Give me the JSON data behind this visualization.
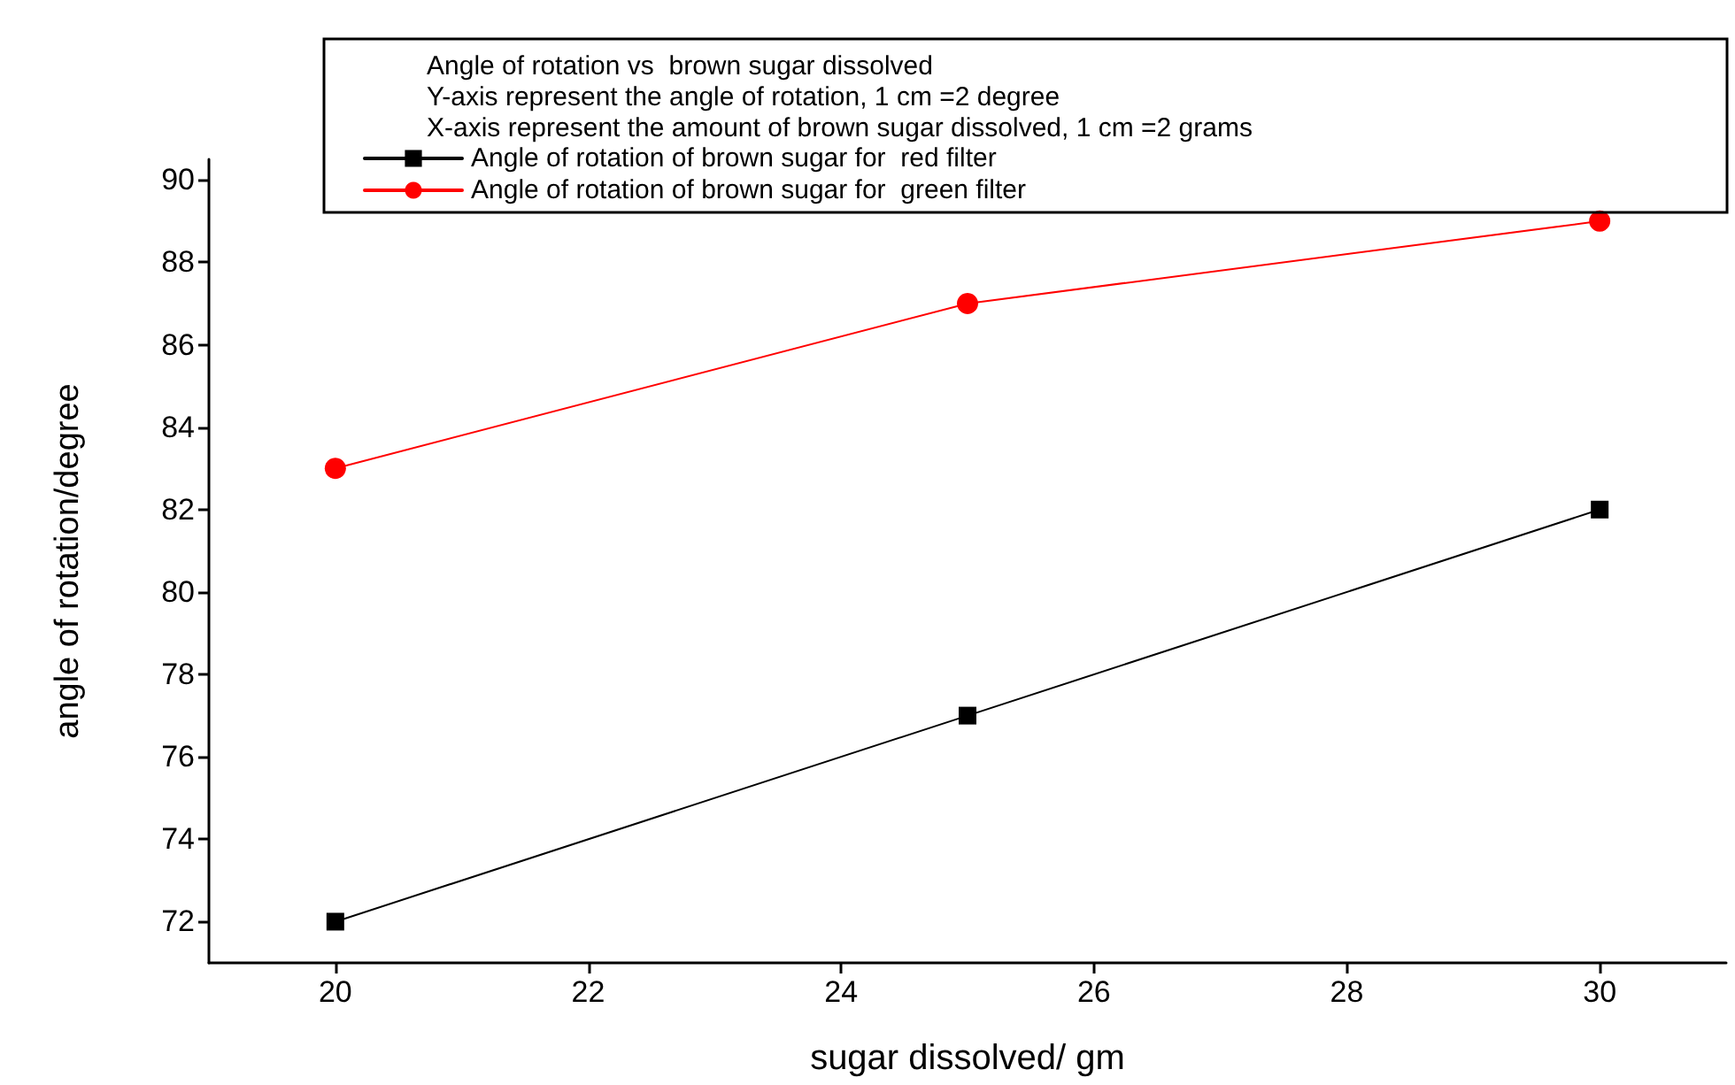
{
  "chart_data": {
    "type": "line",
    "title": "Angle of rotation vs  brown sugar dissolved",
    "annotations": [
      "Y-axis represent the angle of rotation, 1 cm =2 degree",
      "X-axis represent the amount of brown sugar dissolved, 1 cm =2 grams"
    ],
    "xlabel": "sugar dissolved/ gm",
    "ylabel": "angle of rotation/degree",
    "x": [
      20,
      25,
      30
    ],
    "series": [
      {
        "name": "Angle of rotation of brown sugar for  red filter",
        "color": "#000000",
        "marker": "square",
        "values": [
          72,
          77,
          82
        ]
      },
      {
        "name": "Angle of rotation of brown sugar for  green filter",
        "color": "#ff0000",
        "marker": "circle",
        "values": [
          83,
          87,
          89
        ]
      }
    ],
    "xlim": [
      19,
      31
    ],
    "xticks": [
      20,
      22,
      24,
      26,
      28,
      30
    ],
    "ylim": [
      71,
      90.5
    ],
    "yticks": [
      72,
      74,
      76,
      78,
      80,
      82,
      84,
      86,
      88,
      90
    ],
    "grid": false,
    "legend": "top",
    "line_style": "solid"
  }
}
